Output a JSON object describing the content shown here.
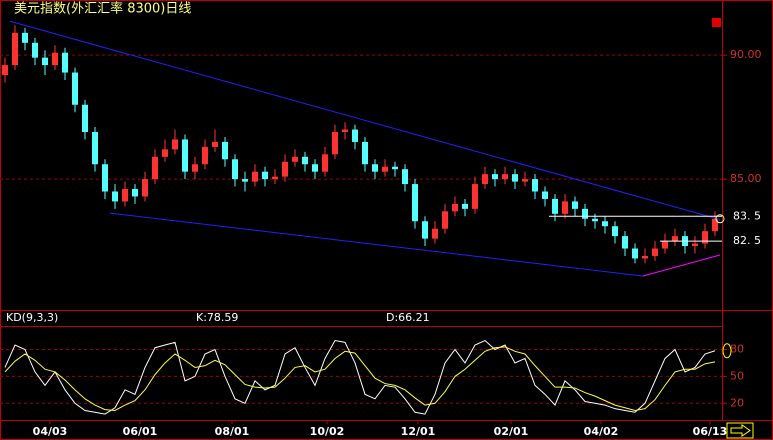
{
  "chart_data": [
    {
      "type": "candlestick",
      "title": "美元指数(外汇汇率 8300)日线",
      "xlim": [
        -0.5,
        71.5
      ],
      "ylim": [
        79.8,
        91.5
      ],
      "yticks": [
        {
          "value": 90,
          "label": "90.00"
        },
        {
          "value": 85,
          "label": "85.00"
        }
      ],
      "grid": true,
      "up_color": "#ff3232",
      "down_color": "#54ffff",
      "open": [
        89.2,
        89.6,
        90.9,
        90.5,
        89.9,
        89.6,
        90.1,
        89.3,
        88.0,
        86.9,
        85.6,
        84.5,
        84.1,
        84.6,
        84.3,
        85.0,
        85.9,
        86.2,
        86.6,
        85.3,
        85.6,
        86.3,
        86.5,
        85.8,
        85.0,
        84.9,
        85.3,
        85.0,
        85.1,
        85.7,
        85.9,
        85.6,
        85.3,
        86.0,
        86.9,
        87.0,
        86.5,
        85.6,
        85.3,
        85.5,
        85.4,
        84.8,
        83.3,
        82.6,
        83.0,
        83.7,
        84.0,
        83.8,
        84.8,
        85.2,
        85.0,
        85.2,
        84.9,
        85.0,
        84.5,
        84.2,
        83.6,
        84.1,
        83.8,
        83.4,
        83.3,
        83.1,
        82.7,
        82.2,
        81.8,
        81.9,
        82.2,
        82.5,
        82.7,
        82.3,
        82.4,
        82.9
      ],
      "high": [
        89.9,
        91.2,
        91.1,
        90.7,
        90.2,
        90.4,
        90.3,
        89.5,
        88.2,
        87.1,
        85.8,
        84.8,
        84.9,
        84.8,
        85.3,
        86.2,
        86.6,
        87.0,
        86.8,
        85.9,
        86.6,
        87.0,
        86.7,
        86.0,
        85.3,
        85.6,
        85.5,
        85.4,
        86.0,
        86.2,
        86.1,
        85.8,
        86.3,
        87.2,
        87.3,
        87.2,
        86.7,
        85.8,
        85.8,
        85.7,
        85.6,
        85.0,
        83.5,
        83.3,
        84.0,
        84.3,
        84.2,
        85.1,
        85.5,
        85.4,
        85.5,
        85.4,
        85.3,
        85.2,
        84.7,
        84.4,
        84.4,
        84.3,
        84.0,
        83.6,
        83.5,
        83.3,
        82.9,
        82.4,
        82.2,
        82.5,
        82.8,
        83.0,
        82.9,
        82.7,
        83.2,
        83.7
      ],
      "low": [
        88.9,
        89.4,
        90.2,
        89.6,
        89.2,
        89.4,
        89.0,
        87.7,
        86.6,
        85.3,
        84.2,
        83.8,
        83.9,
        84.0,
        84.1,
        84.8,
        85.7,
        86.0,
        85.0,
        85.0,
        85.4,
        86.1,
        85.5,
        84.7,
        84.5,
        84.7,
        84.7,
        84.8,
        84.9,
        85.5,
        85.3,
        85.0,
        85.1,
        85.8,
        86.6,
        86.2,
        85.3,
        85.0,
        85.1,
        85.1,
        84.5,
        83.0,
        82.3,
        82.4,
        82.8,
        83.5,
        83.5,
        83.6,
        84.6,
        84.7,
        84.8,
        84.6,
        84.7,
        84.2,
        83.9,
        83.3,
        83.4,
        83.5,
        83.1,
        83.0,
        82.8,
        82.4,
        81.9,
        81.6,
        81.6,
        81.7,
        82.0,
        82.3,
        82.0,
        82.0,
        82.2,
        82.7
      ],
      "close": [
        89.6,
        90.9,
        90.5,
        89.9,
        89.6,
        90.1,
        89.3,
        88.0,
        86.9,
        85.6,
        84.5,
        84.1,
        84.6,
        84.3,
        85.0,
        85.9,
        86.2,
        86.6,
        85.3,
        85.6,
        86.3,
        86.5,
        85.8,
        85.0,
        84.9,
        85.3,
        85.0,
        85.1,
        85.7,
        85.9,
        85.6,
        85.3,
        86.0,
        86.9,
        87.0,
        86.5,
        85.6,
        85.3,
        85.5,
        85.4,
        84.8,
        83.3,
        82.6,
        83.0,
        83.7,
        84.0,
        83.8,
        84.8,
        85.2,
        85.0,
        85.2,
        84.9,
        85.0,
        84.5,
        84.2,
        83.6,
        84.1,
        83.8,
        83.4,
        83.3,
        83.1,
        82.7,
        82.2,
        81.8,
        81.9,
        82.2,
        82.5,
        82.7,
        82.3,
        82.4,
        82.9,
        83.4
      ],
      "trendlines": [
        {
          "color": "#2020ff",
          "x": [
            0.5,
            71.5
          ],
          "y": [
            91.37,
            83.37
          ]
        },
        {
          "color": "#2020ff",
          "x": [
            10.5,
            63.8
          ],
          "y": [
            83.63,
            81.09
          ]
        },
        {
          "color": "#ff00ff",
          "x": [
            63.8,
            71.5
          ],
          "y": [
            81.09,
            81.94
          ]
        }
      ],
      "levels": [
        {
          "value": 83.5,
          "label": "83. 5",
          "x_start": 54.4,
          "color": "#ffffff"
        },
        {
          "value": 82.5,
          "label": "82. 5",
          "x_start": 65.5,
          "color": "#ffffff"
        }
      ]
    },
    {
      "type": "line",
      "indicator": "KD(9,3,3)",
      "k_label": "K:78.59",
      "d_label": "D:66.21",
      "xlim": [
        -0.5,
        71.5
      ],
      "ylim": [
        3.6,
        104
      ],
      "yticks": [
        80,
        50,
        20
      ],
      "grid": true,
      "xticks": [
        {
          "value": 4.5,
          "label": "04/03"
        },
        {
          "value": 13.5,
          "label": "06/01"
        },
        {
          "value": 22.7,
          "label": "08/01"
        },
        {
          "value": 32.2,
          "label": "10/02"
        },
        {
          "value": 41.3,
          "label": "12/01"
        },
        {
          "value": 50.6,
          "label": "02/01"
        },
        {
          "value": 59.6,
          "label": "04/02"
        },
        {
          "value": 70.5,
          "label": "06/13"
        }
      ],
      "series": [
        {
          "name": "K",
          "color": "#ffffff",
          "values": [
            60,
            85,
            80,
            55,
            40,
            55,
            35,
            20,
            12,
            10,
            8,
            15,
            35,
            30,
            60,
            82,
            85,
            88,
            45,
            50,
            75,
            80,
            50,
            25,
            20,
            45,
            35,
            40,
            75,
            82,
            60,
            40,
            70,
            90,
            88,
            65,
            30,
            25,
            40,
            38,
            25,
            10,
            8,
            30,
            65,
            80,
            65,
            85,
            90,
            80,
            85,
            65,
            70,
            40,
            30,
            18,
            45,
            35,
            22,
            20,
            18,
            14,
            12,
            10,
            20,
            45,
            70,
            80,
            55,
            60,
            75,
            78.59
          ]
        },
        {
          "name": "D",
          "color": "#ffff40",
          "values": [
            55,
            67,
            75,
            68,
            58,
            55,
            46,
            35,
            25,
            18,
            13,
            12,
            18,
            23,
            35,
            52,
            65,
            75,
            68,
            60,
            62,
            68,
            63,
            52,
            41,
            38,
            37,
            38,
            48,
            60,
            62,
            55,
            58,
            70,
            78,
            76,
            62,
            48,
            42,
            40,
            35,
            26,
            18,
            20,
            33,
            50,
            58,
            68,
            78,
            82,
            83,
            78,
            75,
            62,
            50,
            38,
            38,
            37,
            32,
            28,
            23,
            18,
            15,
            12,
            14,
            24,
            40,
            55,
            58,
            58,
            64,
            66.21
          ]
        }
      ]
    }
  ]
}
